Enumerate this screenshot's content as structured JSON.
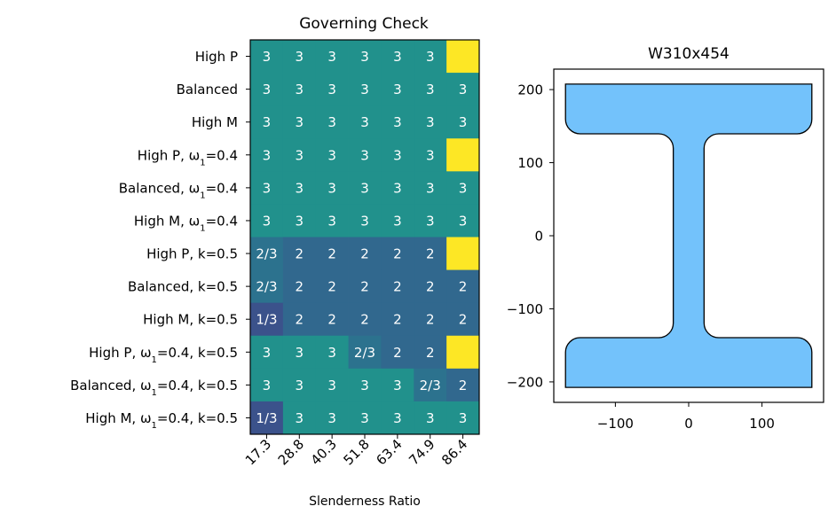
{
  "chart_data": [
    {
      "type": "heatmap",
      "title": "Governing Check",
      "xlabel": "Slenderness Ratio",
      "ylabel": "",
      "x_ticks": [
        "17.3",
        "28.8",
        "40.3",
        "51.8",
        "63.4",
        "74.9",
        "86.4"
      ],
      "y_ticks": [
        "High P",
        "Balanced",
        "High M",
        "High P, ω1=0.4",
        "Balanced, ω1=0.4",
        "High M, ω1=0.4",
        "High P, k=0.5",
        "Balanced, k=0.5",
        "High M, k=0.5",
        "High P, ω1=0.4, k=0.5",
        "Balanced, ω1=0.4, k=0.5",
        "High M, ω1=0.4, k=0.5"
      ],
      "cells": [
        [
          "3",
          "3",
          "3",
          "3",
          "3",
          "3",
          ""
        ],
        [
          "3",
          "3",
          "3",
          "3",
          "3",
          "3",
          "3"
        ],
        [
          "3",
          "3",
          "3",
          "3",
          "3",
          "3",
          "3"
        ],
        [
          "3",
          "3",
          "3",
          "3",
          "3",
          "3",
          ""
        ],
        [
          "3",
          "3",
          "3",
          "3",
          "3",
          "3",
          "3"
        ],
        [
          "3",
          "3",
          "3",
          "3",
          "3",
          "3",
          "3"
        ],
        [
          "2/3",
          "2",
          "2",
          "2",
          "2",
          "2",
          ""
        ],
        [
          "2/3",
          "2",
          "2",
          "2",
          "2",
          "2",
          "2"
        ],
        [
          "1/3",
          "2",
          "2",
          "2",
          "2",
          "2",
          "2"
        ],
        [
          "3",
          "3",
          "3",
          "2/3",
          "2",
          "2",
          ""
        ],
        [
          "3",
          "3",
          "3",
          "3",
          "3",
          "2/3",
          "2"
        ],
        [
          "1/3",
          "3",
          "3",
          "3",
          "3",
          "3",
          "3"
        ]
      ],
      "colors": {
        "3": "#21918c",
        "2": "#31688e",
        "2/3": "#2c728e",
        "1/3": "#3b528b",
        "": "#fde725"
      }
    },
    {
      "type": "section",
      "title": "W310x454",
      "x_ticks": [
        -100,
        0,
        100
      ],
      "y_ticks": [
        200,
        100,
        0,
        -100,
        -200
      ],
      "xlim": [
        -184,
        184
      ],
      "ylim": [
        -228,
        228
      ],
      "depth": 415,
      "flange_width": 336,
      "flange_thickness": 68,
      "web_thickness": 42,
      "fillet_radius": 20,
      "fill": "#73c2fb",
      "stroke": "#000000"
    }
  ]
}
